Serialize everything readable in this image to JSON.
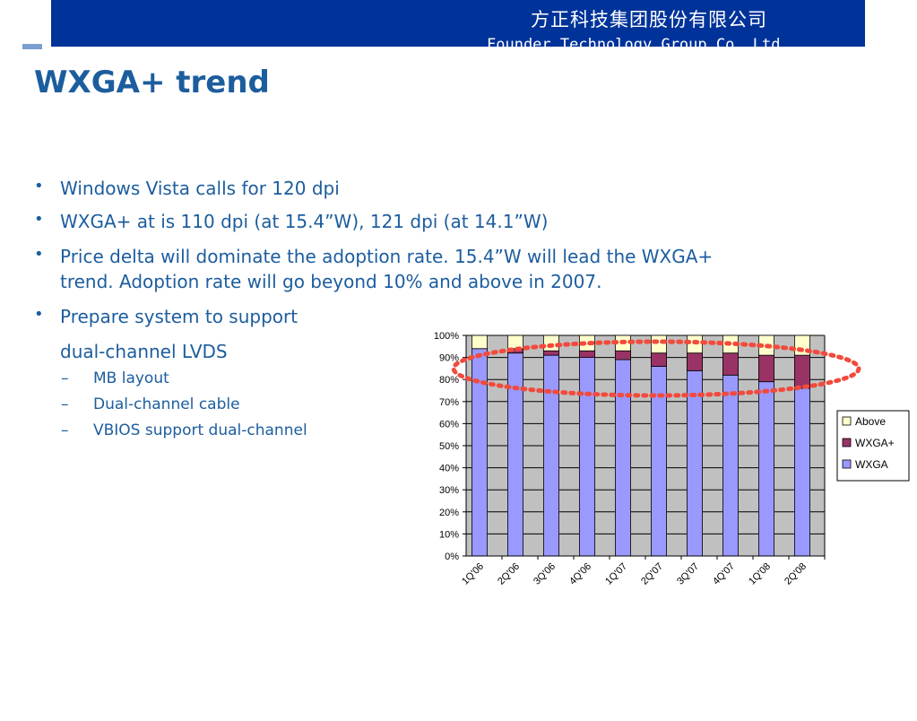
{
  "header": {
    "company_cn": "方正科技集团股份有限公司",
    "company_en": "Founder Technology Group Co.,Ltd"
  },
  "slide": {
    "title": "WXGA+ trend",
    "bullets": [
      "Windows Vista calls for 120 dpi",
      "WXGA+ at is 110 dpi (at 15.4”W), 121 dpi (at 14.1”W)",
      "Price delta will dominate the adoption rate. 15.4”W will lead the WXGA+",
      "trend. Adoption rate will go beyond 10% and above in 2007.",
      "Prepare system to support",
      "dual-channel LVDS"
    ],
    "sub_bullets": [
      "MB layout",
      "Dual-channel cable",
      "VBIOS support dual-channel"
    ],
    "dash": "–"
  },
  "colors": {
    "title": "#1c5d9e",
    "header_bg": "#00339a",
    "plot_bg": "#c0c0c0",
    "wxga": "#9999ff",
    "wxga_plus": "#993366",
    "above": "#ffffcc",
    "highlight_ellipse": "#f24a3c"
  },
  "chart_data": {
    "type": "bar",
    "stacked": true,
    "categories": [
      "1Q'06",
      "2Q'06",
      "3Q'06",
      "4Q'06",
      "1Q'07",
      "2Q'07",
      "3Q'07",
      "4Q'07",
      "1Q'08",
      "2Q'08"
    ],
    "series": [
      {
        "name": "WXGA",
        "values": [
          94,
          92,
          91,
          90,
          89,
          86,
          84,
          82,
          79,
          76
        ],
        "color": "#9999ff"
      },
      {
        "name": "WXGA+",
        "values": [
          0,
          2,
          2,
          3,
          4,
          6,
          8,
          10,
          12,
          15
        ],
        "color": "#993366"
      },
      {
        "name": "Above",
        "values": [
          6,
          6,
          7,
          7,
          7,
          8,
          8,
          8,
          9,
          9
        ],
        "color": "#ffffcc"
      }
    ],
    "ylim": [
      0,
      100
    ],
    "ytick_labels": [
      "0%",
      "10%",
      "20%",
      "30%",
      "40%",
      "50%",
      "60%",
      "70%",
      "80%",
      "90%",
      "100%"
    ],
    "legend_position": "right",
    "legend_order": [
      "Above",
      "WXGA+",
      "WXGA"
    ],
    "grid": true,
    "annotation": "dotted ellipse highlighting WXGA+ segment"
  }
}
